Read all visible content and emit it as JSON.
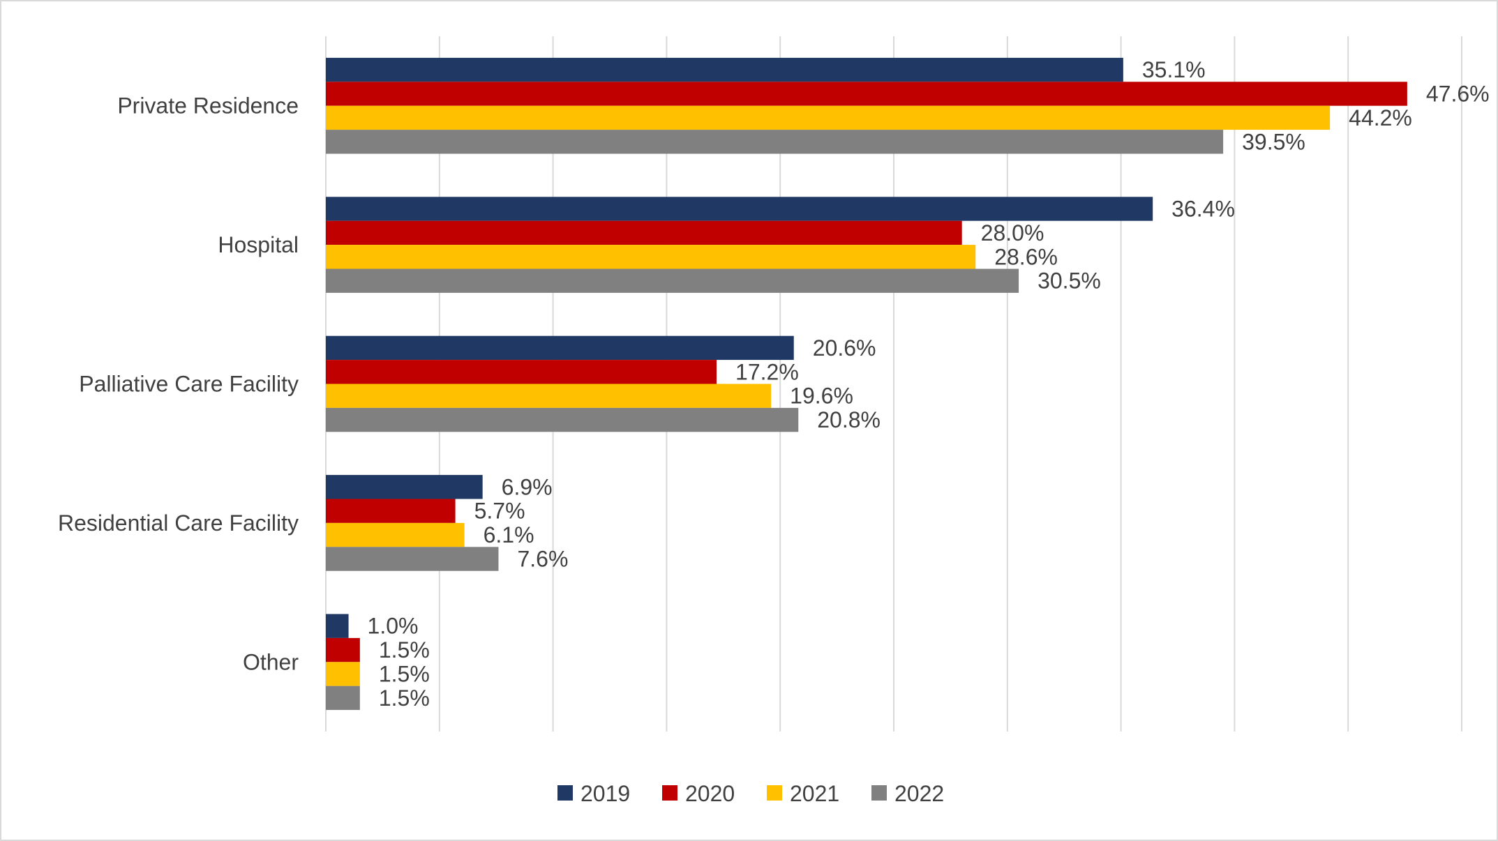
{
  "chart_data": {
    "type": "bar",
    "orientation": "horizontal",
    "title": "",
    "xlabel": "",
    "ylabel": "",
    "categories": [
      "Private Residence",
      "Hospital",
      "Palliative Care Facility",
      "Residential Care Facility",
      "Other"
    ],
    "series": [
      {
        "name": "2019",
        "color": "#203864",
        "values": [
          35.1,
          36.4,
          20.6,
          6.9,
          1.0
        ],
        "labels": [
          "35.1%",
          "36.4%",
          "20.6%",
          "6.9%",
          "1.0%"
        ]
      },
      {
        "name": "2020",
        "color": "#C00000",
        "values": [
          47.6,
          28.0,
          17.2,
          5.7,
          1.5
        ],
        "labels": [
          "47.6%",
          "28.0%",
          "17.2%",
          "5.7%",
          "1.5%"
        ]
      },
      {
        "name": "2021",
        "color": "#FFC000",
        "values": [
          44.2,
          28.6,
          19.6,
          6.1,
          1.5
        ],
        "labels": [
          "44.2%",
          "28.6%",
          "19.6%",
          "6.1%",
          "1.5%"
        ]
      },
      {
        "name": "2022",
        "color": "#808080",
        "values": [
          39.5,
          30.5,
          20.8,
          7.6,
          1.5
        ],
        "labels": [
          "39.5%",
          "30.5%",
          "20.8%",
          "7.6%",
          "1.5%"
        ]
      }
    ],
    "xlim": [
      0,
      50
    ],
    "x_grid_step": 5,
    "x_tick_labels_shown": false,
    "grid": true,
    "legend": "bottom",
    "gridline_color": "#d9d9d9"
  }
}
